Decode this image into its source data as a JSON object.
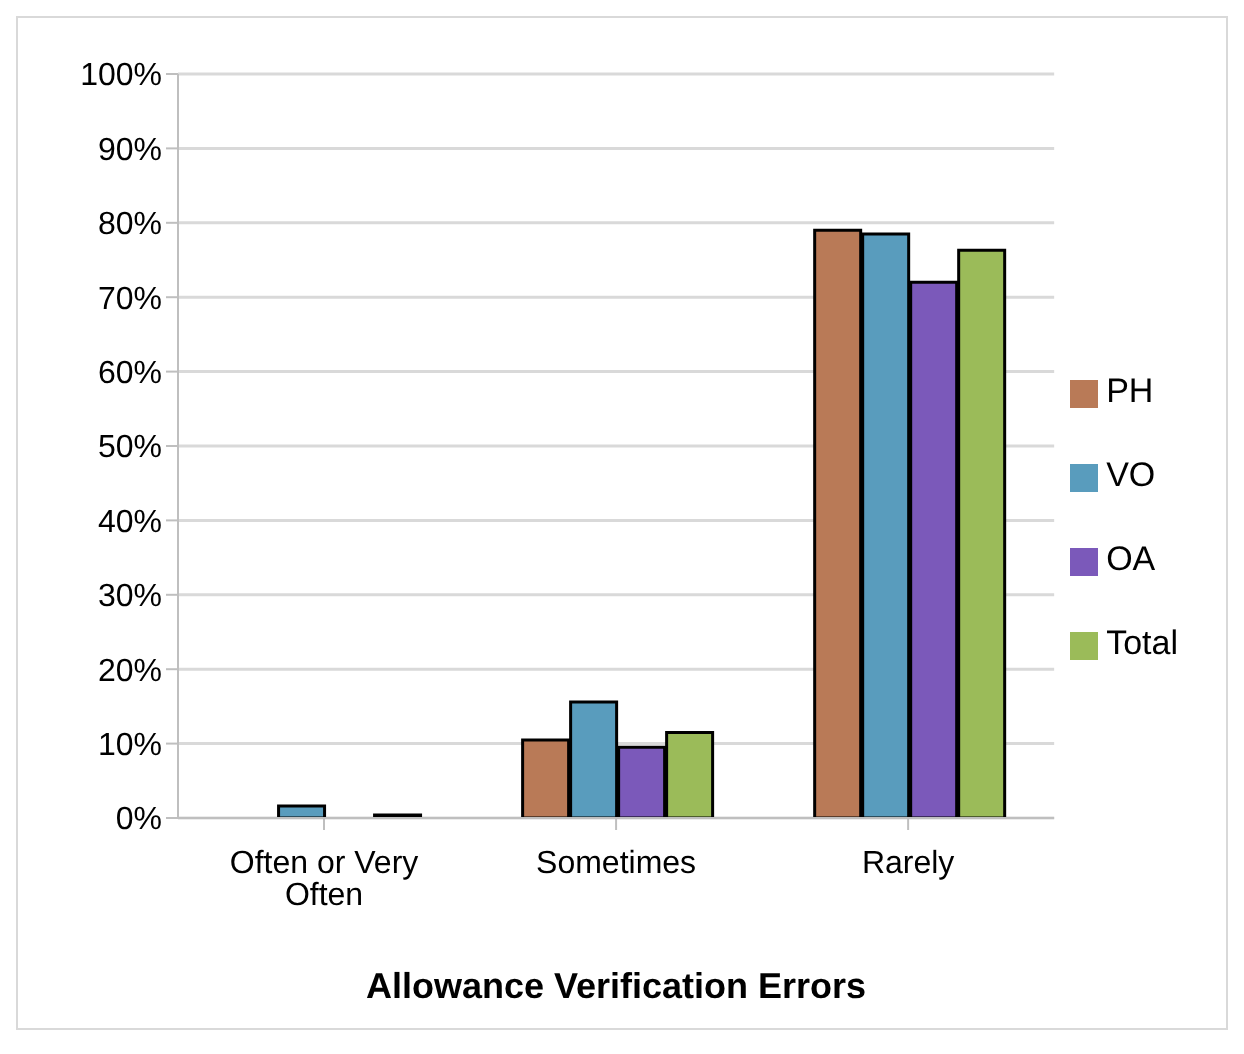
{
  "chart_data": {
    "type": "bar",
    "xlabel": "Allowance Verification Errors",
    "categories": [
      "Often or Very Often",
      "Sometimes",
      "Rarely"
    ],
    "series": [
      {
        "name": "PH",
        "color": "#b97a57",
        "values": [
          0,
          10.5,
          79
        ]
      },
      {
        "name": "VO",
        "color": "#599cbd",
        "values": [
          1.6,
          15.6,
          78.5
        ]
      },
      {
        "name": "OA",
        "color": "#7b59ba",
        "values": [
          0,
          9.5,
          72
        ]
      },
      {
        "name": "Total",
        "color": "#9bbb59",
        "values": [
          0.4,
          11.5,
          76.3
        ]
      }
    ],
    "ylim": [
      0,
      100
    ],
    "yticks": [
      {
        "value": 0,
        "label": "0%"
      },
      {
        "value": 10,
        "label": "10%"
      },
      {
        "value": 20,
        "label": "20%"
      },
      {
        "value": 30,
        "label": "30%"
      },
      {
        "value": 40,
        "label": "40%"
      },
      {
        "value": 50,
        "label": "50%"
      },
      {
        "value": 60,
        "label": "60%"
      },
      {
        "value": 70,
        "label": "70%"
      },
      {
        "value": 80,
        "label": "80%"
      },
      {
        "value": 90,
        "label": "90%"
      },
      {
        "value": 100,
        "label": "100%"
      }
    ],
    "grid": "y",
    "legend": "right"
  }
}
